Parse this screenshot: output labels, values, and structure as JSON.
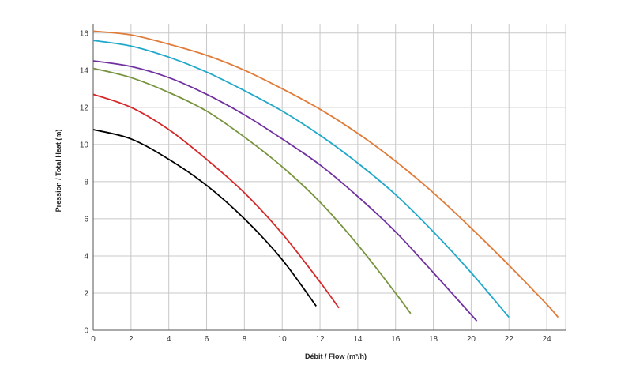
{
  "chart_data": {
    "type": "line",
    "title": "",
    "xlabel": "Débit / Flow (m³/h)",
    "ylabel": "Pression / Total Heat (m)",
    "xlim": [
      0,
      25
    ],
    "ylim": [
      0,
      16.5
    ],
    "x_ticks": [
      0,
      2,
      4,
      6,
      8,
      10,
      12,
      14,
      16,
      18,
      20,
      22,
      24
    ],
    "y_ticks": [
      0,
      2,
      4,
      6,
      8,
      10,
      12,
      14,
      16
    ],
    "grid": true,
    "legend": "none",
    "series": [
      {
        "color": "#000000",
        "points": [
          [
            0,
            10.8
          ],
          [
            2,
            10.3
          ],
          [
            4,
            9.2
          ],
          [
            6,
            7.8
          ],
          [
            8,
            6.0
          ],
          [
            10,
            3.8
          ],
          [
            11.8,
            1.3
          ]
        ]
      },
      {
        "color": "#d62728",
        "points": [
          [
            0,
            12.7
          ],
          [
            2,
            12.0
          ],
          [
            4,
            10.8
          ],
          [
            6,
            9.2
          ],
          [
            8,
            7.4
          ],
          [
            10,
            5.2
          ],
          [
            12,
            2.6
          ],
          [
            13,
            1.2
          ]
        ]
      },
      {
        "color": "#77933c",
        "points": [
          [
            0,
            14.1
          ],
          [
            2,
            13.6
          ],
          [
            4,
            12.8
          ],
          [
            6,
            11.8
          ],
          [
            8,
            10.4
          ],
          [
            10,
            8.8
          ],
          [
            12,
            6.9
          ],
          [
            14,
            4.6
          ],
          [
            16,
            2.0
          ],
          [
            16.8,
            0.9
          ]
        ]
      },
      {
        "color": "#7030a0",
        "points": [
          [
            0,
            14.5
          ],
          [
            2,
            14.2
          ],
          [
            4,
            13.6
          ],
          [
            6,
            12.7
          ],
          [
            8,
            11.6
          ],
          [
            10,
            10.3
          ],
          [
            12,
            8.9
          ],
          [
            14,
            7.2
          ],
          [
            16,
            5.3
          ],
          [
            18,
            3.1
          ],
          [
            20.3,
            0.5
          ]
        ]
      },
      {
        "color": "#1fa8c9",
        "points": [
          [
            0,
            15.6
          ],
          [
            2,
            15.3
          ],
          [
            4,
            14.7
          ],
          [
            6,
            13.9
          ],
          [
            8,
            12.9
          ],
          [
            10,
            11.8
          ],
          [
            12,
            10.5
          ],
          [
            14,
            9.0
          ],
          [
            16,
            7.3
          ],
          [
            18,
            5.3
          ],
          [
            20,
            3.1
          ],
          [
            22,
            0.7
          ]
        ]
      },
      {
        "color": "#e07b39",
        "points": [
          [
            0,
            16.1
          ],
          [
            2,
            15.9
          ],
          [
            4,
            15.4
          ],
          [
            6,
            14.8
          ],
          [
            8,
            14.0
          ],
          [
            10,
            13.0
          ],
          [
            12,
            11.9
          ],
          [
            14,
            10.6
          ],
          [
            16,
            9.1
          ],
          [
            18,
            7.4
          ],
          [
            20,
            5.5
          ],
          [
            22,
            3.5
          ],
          [
            24,
            1.4
          ],
          [
            24.6,
            0.7
          ]
        ]
      }
    ]
  }
}
